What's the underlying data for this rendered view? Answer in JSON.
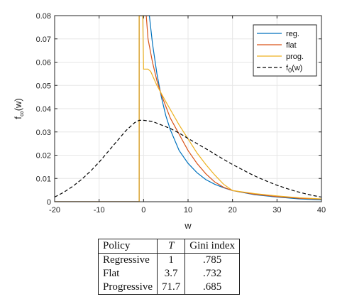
{
  "chart_data": {
    "type": "line",
    "title": "",
    "xlabel": "w",
    "ylabel": "f∞(w)",
    "xlim": [
      -20,
      40
    ],
    "ylim": [
      0,
      0.08
    ],
    "grid": true,
    "legend_position": "top-right",
    "x_ticks": [
      "-20",
      "-10",
      "0",
      "10",
      "20",
      "30",
      "40"
    ],
    "y_ticks": [
      "0",
      "0.01",
      "0.02",
      "0.03",
      "0.04",
      "0.05",
      "0.06",
      "0.07",
      "0.08"
    ],
    "series": [
      {
        "name": "reg.",
        "color": "#0072BD",
        "style": "solid",
        "x": [
          -20,
          -1,
          -1,
          1.3,
          2,
          3,
          4,
          5,
          6,
          8,
          10,
          12,
          14,
          16,
          18,
          20,
          25,
          30,
          35,
          40
        ],
        "y": [
          0,
          0,
          0.08,
          0.08,
          0.068,
          0.055,
          0.045,
          0.037,
          0.031,
          0.022,
          0.0165,
          0.0125,
          0.0095,
          0.0075,
          0.006,
          0.0048,
          0.003,
          0.002,
          0.0012,
          0.0008
        ]
      },
      {
        "name": "flat",
        "color": "#D95319",
        "style": "solid",
        "x": [
          -20,
          -1,
          -1,
          0.6,
          1,
          2,
          3,
          4,
          5,
          6,
          8,
          10,
          12,
          14,
          16,
          18,
          20,
          25,
          30,
          35,
          40
        ],
        "y": [
          0,
          0,
          0.08,
          0.08,
          0.07,
          0.06,
          0.052,
          0.046,
          0.041,
          0.036,
          0.029,
          0.022,
          0.0165,
          0.012,
          0.0085,
          0.0062,
          0.0048,
          0.0032,
          0.0022,
          0.0015,
          0.0011
        ]
      },
      {
        "name": "prog.",
        "color": "#EDB120",
        "style": "solid",
        "x": [
          -20,
          -1,
          -1,
          -0.2,
          0,
          1,
          1.6,
          3,
          5,
          8,
          10,
          12,
          14,
          16,
          18,
          20,
          25,
          30,
          35,
          40
        ],
        "y": [
          0,
          0,
          0.08,
          0.08,
          0.057,
          0.057,
          0.056,
          0.05,
          0.043,
          0.033,
          0.027,
          0.021,
          0.016,
          0.0115,
          0.0075,
          0.0048,
          0.0035,
          0.0025,
          0.0017,
          0.0012
        ]
      },
      {
        "name": "f0(w)",
        "color": "#000000",
        "style": "dashed",
        "x": [
          -20,
          -18,
          -16,
          -14,
          -12,
          -10,
          -8,
          -6,
          -4,
          -2,
          -1,
          0,
          2,
          4,
          6,
          8,
          10,
          12,
          14,
          16,
          18,
          20,
          22,
          24,
          26,
          28,
          30,
          32,
          34,
          36,
          38,
          40
        ],
        "y": [
          0.002,
          0.004,
          0.0065,
          0.0095,
          0.013,
          0.017,
          0.0215,
          0.026,
          0.0305,
          0.034,
          0.035,
          0.035,
          0.0345,
          0.033,
          0.0315,
          0.0295,
          0.0272,
          0.025,
          0.0228,
          0.0205,
          0.0182,
          0.016,
          0.014,
          0.012,
          0.0102,
          0.0086,
          0.0071,
          0.0058,
          0.0046,
          0.0036,
          0.0027,
          0.002
        ]
      }
    ]
  },
  "table": {
    "headers": [
      "Policy",
      "T",
      "Gini index"
    ],
    "rows": [
      [
        "Regressive",
        "1",
        ".785"
      ],
      [
        "Flat",
        "3.7",
        ".732"
      ],
      [
        "Progressive",
        "71.7",
        ".685"
      ]
    ]
  }
}
